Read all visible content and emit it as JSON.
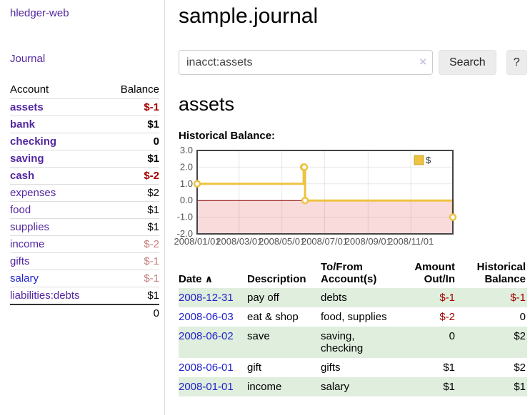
{
  "app": {
    "title": "hledger-web"
  },
  "sidebar": {
    "journal_label": "Journal",
    "accounts_table": {
      "headers": {
        "account": "Account",
        "balance": "Balance"
      },
      "rows": [
        {
          "name": "assets",
          "balance": "$-1",
          "level": 1,
          "bold": true,
          "neg": "strong"
        },
        {
          "name": "bank",
          "balance": "$1",
          "level": 2,
          "bold": true,
          "neg": ""
        },
        {
          "name": "checking",
          "balance": "0",
          "level": 3,
          "bold": true,
          "neg": ""
        },
        {
          "name": "saving",
          "balance": "$1",
          "level": 3,
          "bold": true,
          "neg": ""
        },
        {
          "name": "cash",
          "balance": "$-2",
          "level": 2,
          "bold": true,
          "neg": "strong"
        },
        {
          "name": "expenses",
          "balance": "$2",
          "level": 1,
          "bold": false,
          "neg": ""
        },
        {
          "name": "food",
          "balance": "$1",
          "level": 2,
          "bold": false,
          "neg": ""
        },
        {
          "name": "supplies",
          "balance": "$1",
          "level": 2,
          "bold": false,
          "neg": ""
        },
        {
          "name": "income",
          "balance": "$-2",
          "level": 1,
          "bold": false,
          "neg": "soft"
        },
        {
          "name": "gifts",
          "balance": "$-1",
          "level": 2,
          "bold": false,
          "neg": "soft"
        },
        {
          "name": "salary",
          "balance": "$-1",
          "level": 2,
          "bold": false,
          "neg": "soft",
          "link_color": "blue"
        },
        {
          "name": "liabilities:debts",
          "balance": "$1",
          "level": 1,
          "bold": false,
          "neg": ""
        }
      ],
      "total": "0"
    }
  },
  "main": {
    "title": "sample.journal",
    "search": {
      "value": "inacct:assets",
      "clear_icon": "×",
      "search_button_label": "Search",
      "help_button_label": "?"
    },
    "account_heading": "assets",
    "chart_heading": "Historical Balance:"
  },
  "chart_data": {
    "type": "line",
    "style": "step",
    "title": "Historical Balance:",
    "series": [
      {
        "name": "$",
        "color": "#edc240",
        "points": [
          {
            "x": "2008-01-01",
            "y": 1
          },
          {
            "x": "2008-06-01",
            "y": 2
          },
          {
            "x": "2008-06-02",
            "y": 2
          },
          {
            "x": "2008-06-03",
            "y": 0
          },
          {
            "x": "2008-12-31",
            "y": -1
          }
        ]
      }
    ],
    "x_range": [
      "2008-01-01",
      "2008-12-31"
    ],
    "ylim": [
      -2,
      3
    ],
    "y_tick_labels": [
      "3.0",
      "2.0",
      "1.0",
      "0.0",
      "-1.0",
      "-2.0"
    ],
    "x_tick_labels": [
      "2008/01/01",
      "2008/03/01",
      "2008/05/01",
      "2008/07/01",
      "2008/09/01",
      "2008/11/01"
    ],
    "grid": true,
    "negative_zone": {
      "from": 0,
      "to": -2,
      "fill": "#fadbdb",
      "zero_line_color": "#8b0000"
    },
    "legend": {
      "label": "$",
      "position": "top-right",
      "swatch_color": "#edc240"
    }
  },
  "transactions": {
    "headers": {
      "date": "Date",
      "sort_icon": "∧",
      "description": "Description",
      "accounts": "To/From Account(s)",
      "amount": "Amount Out/In",
      "balance": "Historical Balance"
    },
    "rows": [
      {
        "date": "2008-12-31",
        "description": "pay off",
        "accounts": "debts",
        "amount": "$-1",
        "amount_neg": true,
        "balance": "$-1",
        "balance_neg": true
      },
      {
        "date": "2008-06-03",
        "description": "eat & shop",
        "accounts": "food, supplies",
        "amount": "$-2",
        "amount_neg": true,
        "balance": "0",
        "balance_neg": false
      },
      {
        "date": "2008-06-02",
        "description": "save",
        "accounts": "saving, checking",
        "amount": "0",
        "amount_neg": false,
        "balance": "$2",
        "balance_neg": false
      },
      {
        "date": "2008-06-01",
        "description": "gift",
        "accounts": "gifts",
        "amount": "$1",
        "amount_neg": false,
        "balance": "$2",
        "balance_neg": false
      },
      {
        "date": "2008-01-01",
        "description": "income",
        "accounts": "salary",
        "amount": "$1",
        "amount_neg": false,
        "balance": "$1",
        "balance_neg": false
      }
    ]
  },
  "colors": {
    "link_purple": "#53279f",
    "link_blue": "#2222cc",
    "negative_strong": "#a40000",
    "negative_soft": "#c4807d",
    "row_stripe_green": "#dfeedd",
    "series_gold": "#edc240",
    "negative_zone_pink": "#fadbdb",
    "zero_line_red": "#8b0000"
  }
}
